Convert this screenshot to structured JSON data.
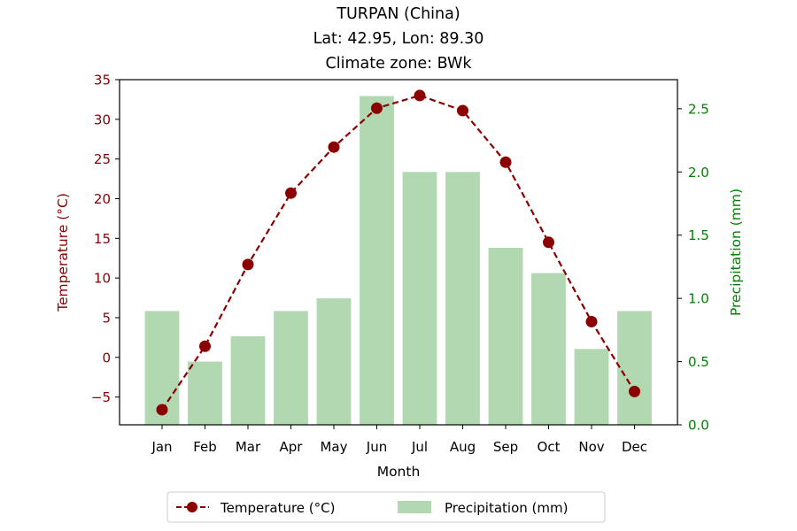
{
  "chart_data": {
    "type": "bar+line",
    "title_lines": [
      "TURPAN (China)",
      "Lat: 42.95, Lon: 89.30",
      "Climate zone: BWk"
    ],
    "xlabel": "Month",
    "ylabel_left": "Temperature (°C)",
    "ylabel_right": "Precipitation (mm)",
    "categories": [
      "Jan",
      "Feb",
      "Mar",
      "Apr",
      "May",
      "Jun",
      "Jul",
      "Aug",
      "Sep",
      "Oct",
      "Nov",
      "Dec"
    ],
    "series": [
      {
        "name": "Temperature (°C)",
        "kind": "line",
        "axis": "left",
        "color": "#8b0000",
        "values": [
          -6.6,
          1.4,
          11.7,
          20.7,
          26.5,
          31.4,
          33.0,
          31.1,
          24.6,
          14.5,
          4.5,
          -4.3
        ]
      },
      {
        "name": "Precipitation (mm)",
        "kind": "bar",
        "axis": "right",
        "color": "#b2d8b2",
        "values": [
          0.9,
          0.5,
          0.7,
          0.9,
          1.0,
          2.6,
          2.0,
          2.0,
          1.4,
          1.2,
          0.6,
          0.9
        ]
      }
    ],
    "ylim_left": [
      -8.5,
      35
    ],
    "yticks_left": [
      -5,
      0,
      5,
      10,
      15,
      20,
      25,
      30,
      35
    ],
    "yticklabels_left": [
      "−5",
      "0",
      "5",
      "10",
      "15",
      "20",
      "25",
      "30",
      "35"
    ],
    "ylim_right": [
      0,
      2.73
    ],
    "yticks_right": [
      0.0,
      0.5,
      1.0,
      1.5,
      2.0,
      2.5
    ],
    "yticklabels_right": [
      "0.0",
      "0.5",
      "1.0",
      "1.5",
      "2.0",
      "2.5"
    ],
    "legend_position": "bottom-center",
    "grid": false,
    "colors": {
      "left_axis": "#8b0000",
      "right_axis": "#008000",
      "text": "#000000"
    }
  }
}
